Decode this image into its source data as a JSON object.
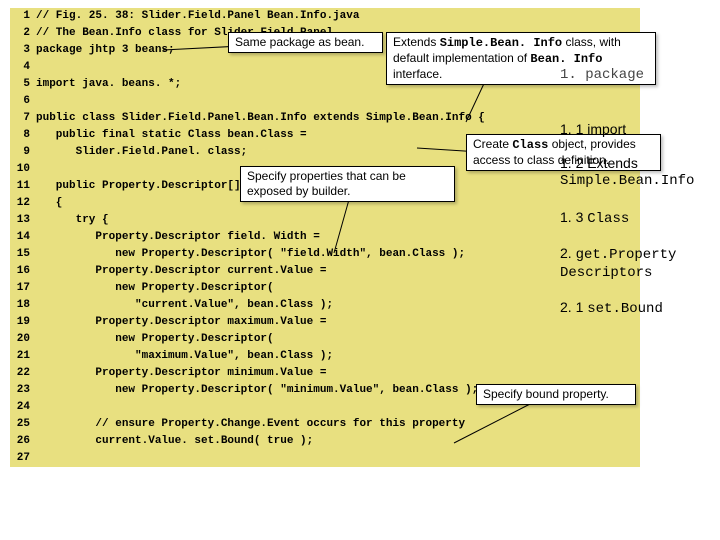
{
  "code": {
    "lines": [
      "// Fig. 25. 38: Slider.Field.Panel Bean.Info.java",
      "// The Bean.Info class for Slider.Field.Panel",
      "package jhtp 3 beans;",
      "",
      "import java. beans. *;",
      "",
      "public class Slider.Field.Panel.Bean.Info extends Simple.Bean.Info {",
      "   public final static Class bean.Class =",
      "      Slider.Field.Panel. class;",
      "",
      "   public Property.Descriptor[] get.Property.Descriptors()",
      "   {",
      "      try {",
      "         Property.Descriptor field. Width =",
      "            new Property.Descriptor( \"field.Width\", bean.Class );",
      "         Property.Descriptor current.Value =",
      "            new Property.Descriptor(",
      "               \"current.Value\", bean.Class );",
      "         Property.Descriptor maximum.Value =",
      "            new Property.Descriptor(",
      "               \"maximum.Value\", bean.Class );",
      "         Property.Descriptor minimum.Value =",
      "            new Property.Descriptor( \"minimum.Value\", bean.Class );",
      "",
      "         // ensure Property.Change.Event occurs for this property",
      "         current.Value. set.Bound( true );",
      ""
    ]
  },
  "callouts": {
    "c1": "Same package as bean.",
    "c2_pre": "Extends ",
    "c2_mono1": "Simple.Bean. Info",
    "c2_mid": " class, with default implementation of ",
    "c2_mono2": "Bean. Info",
    "c2_post": " interface.",
    "c3_pre": "Create ",
    "c3_mono": "Class",
    "c3_post": " object, provides access to class definition.",
    "c4": "Specify properties that can be exposed by builder.",
    "c5": "Specify bound property."
  },
  "outline": {
    "o1": "1. package",
    "o2": "1. 1 import",
    "o3_a": "1. 2 Extends ",
    "o3_b": "Simple.Bean.Info",
    "o4_a": "1. 3 ",
    "o4_b": "Class",
    "o5_a": "2. ",
    "o5_b": "get.Property Descriptors",
    "o6_a": "2. 1 ",
    "o6_b": "set.Bound"
  }
}
